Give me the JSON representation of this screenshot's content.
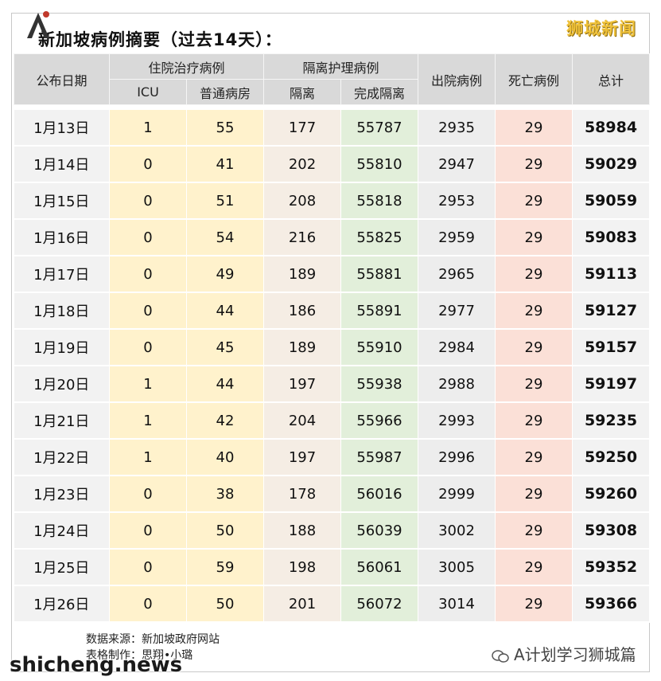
{
  "title": "新加坡病例摘要（过去14天）：",
  "brand": "狮城新闻",
  "headers": {
    "date": "公布日期",
    "hospital": "住院治疗病例",
    "icu": "ICU",
    "ward": "普通病房",
    "isolation_group": "隔离护理病例",
    "isolation": "隔离",
    "completed": "完成隔离",
    "discharged": "出院病例",
    "deaths": "死亡病例",
    "total": "总计"
  },
  "rows": [
    {
      "date": "1月13日",
      "icu": "1",
      "ward": "55",
      "iso": "177",
      "done": "55787",
      "dis": "2935",
      "death": "29",
      "total": "58984"
    },
    {
      "date": "1月14日",
      "icu": "0",
      "ward": "41",
      "iso": "202",
      "done": "55810",
      "dis": "2947",
      "death": "29",
      "total": "59029"
    },
    {
      "date": "1月15日",
      "icu": "0",
      "ward": "51",
      "iso": "208",
      "done": "55818",
      "dis": "2953",
      "death": "29",
      "total": "59059"
    },
    {
      "date": "1月16日",
      "icu": "0",
      "ward": "54",
      "iso": "216",
      "done": "55825",
      "dis": "2959",
      "death": "29",
      "total": "59083"
    },
    {
      "date": "1月17日",
      "icu": "0",
      "ward": "49",
      "iso": "189",
      "done": "55881",
      "dis": "2965",
      "death": "29",
      "total": "59113"
    },
    {
      "date": "1月18日",
      "icu": "0",
      "ward": "44",
      "iso": "186",
      "done": "55891",
      "dis": "2977",
      "death": "29",
      "total": "59127"
    },
    {
      "date": "1月19日",
      "icu": "0",
      "ward": "45",
      "iso": "189",
      "done": "55910",
      "dis": "2984",
      "death": "29",
      "total": "59157"
    },
    {
      "date": "1月20日",
      "icu": "1",
      "ward": "44",
      "iso": "197",
      "done": "55938",
      "dis": "2988",
      "death": "29",
      "total": "59197"
    },
    {
      "date": "1月21日",
      "icu": "1",
      "ward": "42",
      "iso": "204",
      "done": "55966",
      "dis": "2993",
      "death": "29",
      "total": "59235"
    },
    {
      "date": "1月22日",
      "icu": "1",
      "ward": "40",
      "iso": "197",
      "done": "55987",
      "dis": "2996",
      "death": "29",
      "total": "59250"
    },
    {
      "date": "1月23日",
      "icu": "0",
      "ward": "38",
      "iso": "178",
      "done": "56016",
      "dis": "2999",
      "death": "29",
      "total": "59260"
    },
    {
      "date": "1月24日",
      "icu": "0",
      "ward": "50",
      "iso": "188",
      "done": "56039",
      "dis": "3002",
      "death": "29",
      "total": "59308"
    },
    {
      "date": "1月25日",
      "icu": "0",
      "ward": "59",
      "iso": "198",
      "done": "56061",
      "dis": "3005",
      "death": "29",
      "total": "59352"
    },
    {
      "date": "1月26日",
      "icu": "0",
      "ward": "50",
      "iso": "201",
      "done": "56072",
      "dis": "3014",
      "death": "29",
      "total": "59366"
    }
  ],
  "footer": {
    "source": "数据来源：新加坡政府网站",
    "credit": "表格制作：思翔•小璐",
    "watermark": "shicheng.news",
    "wechat": "A计划学习狮城篇"
  },
  "colors": {
    "header": "#d9d9d9",
    "hospital": "#fff2cc",
    "isolation": "#f5ede4",
    "completed": "#e2efda",
    "discharged": "#ededed",
    "deaths": "#fbe0d7",
    "brand": "#f0c23a"
  },
  "icons": [
    "logo-icon",
    "wechat-icon"
  ]
}
